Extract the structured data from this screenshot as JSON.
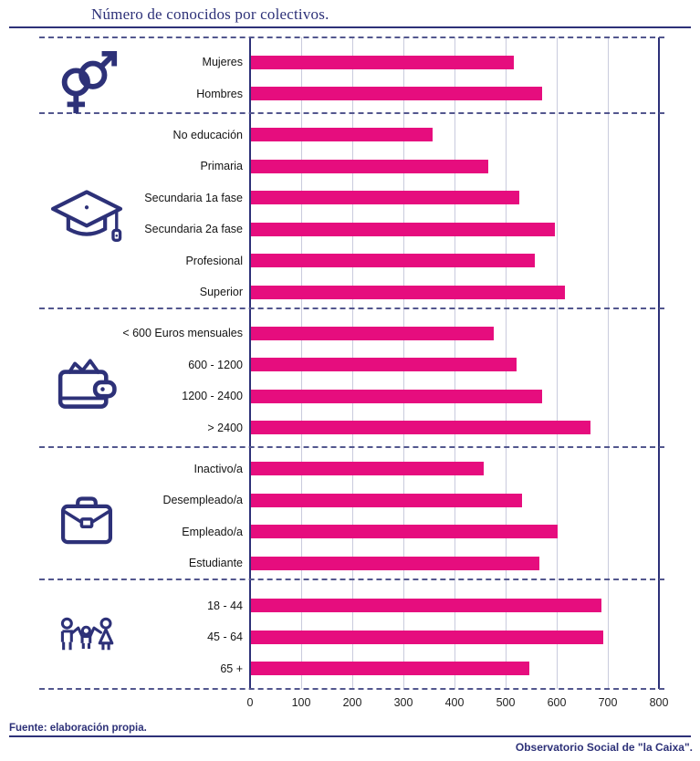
{
  "title": "Número de conocidos por colectivos.",
  "footer": {
    "source": "Fuente: elaboración propia.",
    "credit": "Observatorio Social de \"la Caixa\"."
  },
  "colors": {
    "accent_navy": "#2d3178",
    "bar_pink": "#e60d7e",
    "gridline": "#c9cbdd"
  },
  "chart_data": {
    "type": "bar",
    "orientation": "horizontal",
    "title": "Número de conocidos por colectivos.",
    "xlabel": "",
    "ylabel": "",
    "xlim": [
      0,
      800
    ],
    "x_ticks": [
      0,
      100,
      200,
      300,
      400,
      500,
      600,
      700,
      800
    ],
    "grid": true,
    "groups": [
      {
        "name": "genero",
        "icon": "gender-icon",
        "rows": [
          {
            "label": "Mujeres",
            "value": 515
          },
          {
            "label": "Hombres",
            "value": 570
          }
        ]
      },
      {
        "name": "educacion",
        "icon": "graduation-cap-icon",
        "rows": [
          {
            "label": "No educación",
            "value": 355
          },
          {
            "label": "Primaria",
            "value": 465
          },
          {
            "label": "Secundaria 1a fase",
            "value": 525
          },
          {
            "label": "Secundaria 2a fase",
            "value": 595
          },
          {
            "label": "Profesional",
            "value": 555
          },
          {
            "label": "Superior",
            "value": 615
          }
        ]
      },
      {
        "name": "ingresos",
        "icon": "wallet-icon",
        "rows": [
          {
            "label": "< 600 Euros mensuales",
            "value": 475
          },
          {
            "label": "600 - 1200",
            "value": 520
          },
          {
            "label": "1200 - 2400",
            "value": 570
          },
          {
            "label": "> 2400",
            "value": 665
          }
        ]
      },
      {
        "name": "situacion-laboral",
        "icon": "briefcase-icon",
        "rows": [
          {
            "label": "Inactivo/a",
            "value": 455
          },
          {
            "label": "Desempleado/a",
            "value": 530
          },
          {
            "label": "Empleado/a",
            "value": 600
          },
          {
            "label": "Estudiante",
            "value": 565
          }
        ]
      },
      {
        "name": "edad",
        "icon": "family-icon",
        "rows": [
          {
            "label": "18 - 44",
            "value": 685
          },
          {
            "label": "45 - 64",
            "value": 690
          },
          {
            "label": "65 +",
            "value": 545
          }
        ]
      }
    ]
  }
}
